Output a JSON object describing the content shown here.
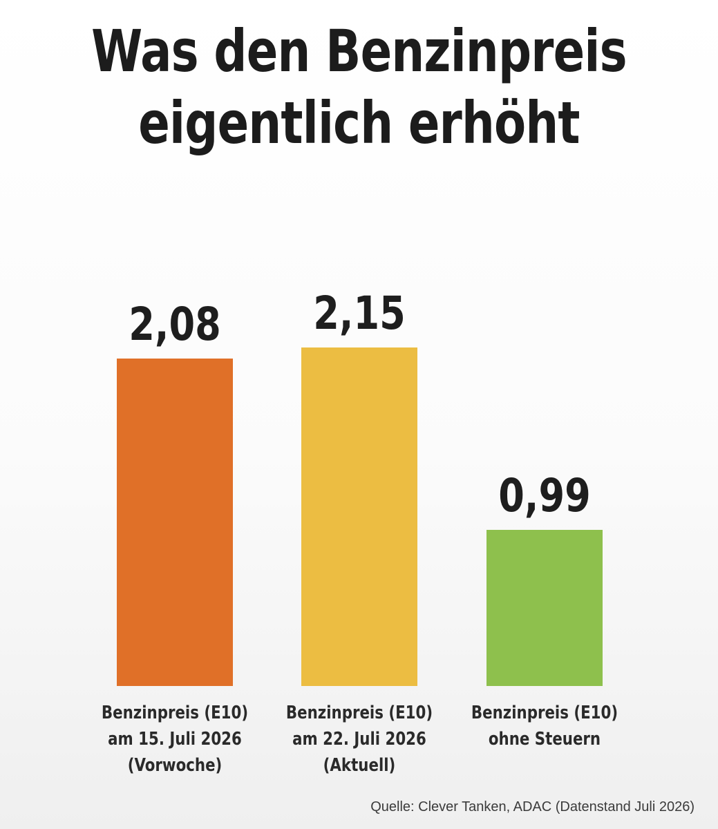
{
  "title_lines": [
    "Was den Benzinpreis",
    "eigentlich erhöht"
  ],
  "source": "Quelle: Clever Tanken, ADAC (Datenstand Juli 2026)",
  "chart_data": {
    "type": "bar",
    "title": "Was den Benzinpreis eigentlich erhöht",
    "categories": [
      [
        "Benzinpreis (E10)",
        "am 15. Juli 2026",
        "(Vorwoche)"
      ],
      [
        "Benzinpreis (E10)",
        "am 22. Juli 2026",
        "(Aktuell)"
      ],
      [
        "Benzinpreis (E10)",
        "ohne Steuern"
      ]
    ],
    "values": [
      2.08,
      2.15,
      0.99
    ],
    "value_labels": [
      "2,08",
      "2,15",
      "0,99"
    ],
    "colors": [
      "#e07028",
      "#ecbd42",
      "#8ec04d"
    ],
    "grid": false,
    "legend": false
  }
}
